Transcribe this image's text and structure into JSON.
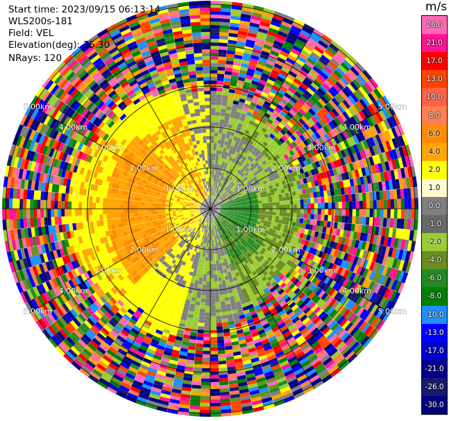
{
  "header": {
    "start_time": "Start time: 2023/09/15 06:13:14",
    "instrument": "WLS200s-181",
    "field": "Field: VEL",
    "elevation": "Elevation(deg): 35.30",
    "nrays": "NRays: 120"
  },
  "colorbar": {
    "unit": "m/s",
    "levels": [
      {
        "label": "26.0",
        "color": "#ff69b4"
      },
      {
        "label": "21.0",
        "color": "#ff1493"
      },
      {
        "label": "17.0",
        "color": "#ff0000"
      },
      {
        "label": "13.0",
        "color": "#ff4500"
      },
      {
        "label": "10.0",
        "color": "#ff6347"
      },
      {
        "label": "8.0",
        "color": "#ff7f50"
      },
      {
        "label": "6.0",
        "color": "#ff8c00"
      },
      {
        "label": "4.0",
        "color": "#ffa500"
      },
      {
        "label": "2.0",
        "color": "#ffff00"
      },
      {
        "label": "1.0",
        "color": "#fffacd"
      },
      {
        "label": "0.0",
        "color": "#808080"
      },
      {
        "label": "-1.0",
        "color": "#696969"
      },
      {
        "label": "-2.0",
        "color": "#9acd32"
      },
      {
        "label": "-4.0",
        "color": "#6b8e23"
      },
      {
        "label": "-6.0",
        "color": "#228b22"
      },
      {
        "label": "-8.0",
        "color": "#008000"
      },
      {
        "label": "-10.0",
        "color": "#1e90ff"
      },
      {
        "label": "-13.0",
        "color": "#0000ff"
      },
      {
        "label": "-17.0",
        "color": "#0000cd"
      },
      {
        "label": "-21.0",
        "color": "#00008b"
      },
      {
        "label": "-26.0",
        "color": "#191970"
      },
      {
        "label": "-30.0",
        "color": "#000080"
      }
    ]
  },
  "range_labels": [
    "1.00km",
    "2.00km",
    "3.00km",
    "4.00km",
    "5.00km"
  ]
}
